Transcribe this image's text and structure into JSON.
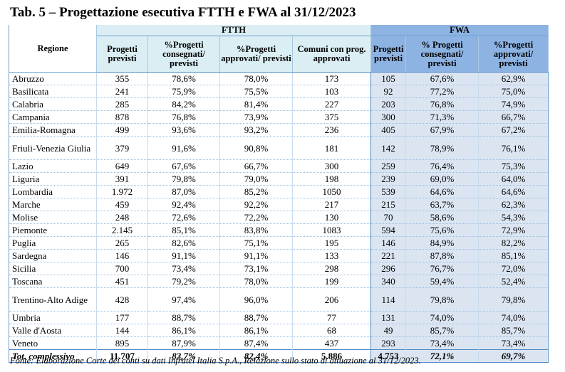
{
  "title": "Tab. 5 – Progettazione esecutiva FTTH e FWA al 31/12/2023",
  "header": {
    "regione": "Regione",
    "ftth": "FTTH",
    "fwa": "FWA",
    "ftth_cols": [
      "Progetti previsti",
      "%Progetti consegnati/ previsti",
      "%Progetti approvati/ previsti",
      "Comuni con prog. approvati"
    ],
    "fwa_cols": [
      "Progetti previsti",
      "% Progetti consegnati/ previsti",
      "%Progetti approvati/ previsti"
    ]
  },
  "rows": [
    [
      "Abruzzo",
      "355",
      "78,6%",
      "78,0%",
      "173",
      "105",
      "67,6%",
      "62,9%"
    ],
    [
      "Basilicata",
      "241",
      "75,9%",
      "75,5%",
      "103",
      "92",
      "77,2%",
      "75,0%"
    ],
    [
      "Calabria",
      "285",
      "84,2%",
      "81,4%",
      "227",
      "203",
      "76,8%",
      "74,9%"
    ],
    [
      "Campania",
      "878",
      "76,8%",
      "73,9%",
      "375",
      "300",
      "71,3%",
      "66,7%"
    ],
    [
      "Emilia-Romagna",
      "499",
      "93,6%",
      "93,2%",
      "236",
      "405",
      "67,9%",
      "67,2%"
    ],
    [
      "Friuli-Venezia Giulia",
      "379",
      "91,6%",
      "90,8%",
      "181",
      "142",
      "78,9%",
      "76,1%"
    ],
    [
      "Lazio",
      "649",
      "67,6%",
      "66,7%",
      "300",
      "259",
      "76,4%",
      "75,3%"
    ],
    [
      "Liguria",
      "391",
      "79,8%",
      "79,0%",
      "198",
      "239",
      "69,0%",
      "64,0%"
    ],
    [
      "Lombardia",
      "1.972",
      "87,0%",
      "85,2%",
      "1050",
      "539",
      "64,6%",
      "64,6%"
    ],
    [
      "Marche",
      "459",
      "92,4%",
      "92,2%",
      "217",
      "215",
      "63,7%",
      "62,3%"
    ],
    [
      "Molise",
      "248",
      "72,6%",
      "72,2%",
      "130",
      "70",
      "58,6%",
      "54,3%"
    ],
    [
      "Piemonte",
      "2.145",
      "85,1%",
      "83,8%",
      "1083",
      "594",
      "75,6%",
      "72,9%"
    ],
    [
      "Puglia",
      "265",
      "82,6%",
      "75,1%",
      "195",
      "146",
      "84,9%",
      "82,2%"
    ],
    [
      "Sardegna",
      "146",
      "91,1%",
      "91,1%",
      "133",
      "221",
      "87,8%",
      "85,1%"
    ],
    [
      "Sicilia",
      "700",
      "73,4%",
      "73,1%",
      "298",
      "296",
      "76,7%",
      "72,0%"
    ],
    [
      "Toscana",
      "451",
      "79,2%",
      "78,0%",
      "199",
      "340",
      "59,4%",
      "52,4%"
    ],
    [
      "Trentino-Alto Adige",
      "428",
      "97,4%",
      "96,0%",
      "206",
      "114",
      "79,8%",
      "79,8%"
    ],
    [
      "Umbria",
      "177",
      "88,7%",
      "88,7%",
      "77",
      "131",
      "74,0%",
      "74,0%"
    ],
    [
      "Valle d'Aosta",
      "144",
      "86,1%",
      "86,1%",
      "68",
      "49",
      "85,7%",
      "85,7%"
    ],
    [
      "Veneto",
      "895",
      "87,9%",
      "87,4%",
      "437",
      "293",
      "73,4%",
      "73,4%"
    ]
  ],
  "total": [
    "Tot. complessivo",
    "11.707",
    "83,7%",
    "82,4%",
    "5.886",
    "4.753",
    "72,1%",
    "69,7%"
  ],
  "source": "Fonte: Elaborazione Corte dei conti su dati Infratel Italia S.p.A., Relazione sullo stato di attuazione al 31/12/2023."
}
